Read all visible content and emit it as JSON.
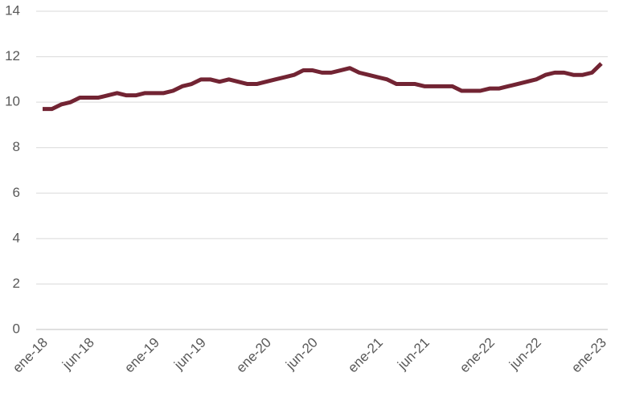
{
  "chart_data": {
    "type": "line",
    "categories": [
      "ene-18",
      null,
      null,
      null,
      null,
      "jun-18",
      null,
      null,
      null,
      null,
      null,
      null,
      "ene-19",
      null,
      null,
      null,
      null,
      "jun-19",
      null,
      null,
      null,
      null,
      null,
      null,
      "ene-20",
      null,
      null,
      null,
      null,
      "jun-20",
      null,
      null,
      null,
      null,
      null,
      null,
      "ene-21",
      null,
      null,
      null,
      null,
      "jun-21",
      null,
      null,
      null,
      null,
      null,
      null,
      "ene-22",
      null,
      null,
      null,
      null,
      "jun-22",
      null,
      null,
      null,
      null,
      null,
      null,
      "ene-23"
    ],
    "series": [
      {
        "color": "#722433",
        "values": [
          9.7,
          9.7,
          9.9,
          10.0,
          10.2,
          10.2,
          10.2,
          10.3,
          10.4,
          10.3,
          10.3,
          10.4,
          10.4,
          10.4,
          10.5,
          10.7,
          10.8,
          11.0,
          11.0,
          10.9,
          11.0,
          10.9,
          10.8,
          10.8,
          10.9,
          11.0,
          11.1,
          11.2,
          11.4,
          11.4,
          11.3,
          11.3,
          11.4,
          11.5,
          11.3,
          11.2,
          11.1,
          11.0,
          10.8,
          10.8,
          10.8,
          10.7,
          10.7,
          10.7,
          10.7,
          10.5,
          10.5,
          10.5,
          10.6,
          10.6,
          10.7,
          10.8,
          10.9,
          11.0,
          11.2,
          11.3,
          11.3,
          11.2,
          11.2,
          11.3,
          11.7
        ]
      }
    ],
    "ylim": [
      0,
      14
    ],
    "yticks": [
      0,
      2,
      4,
      6,
      8,
      10,
      12,
      14
    ],
    "grid": true
  }
}
